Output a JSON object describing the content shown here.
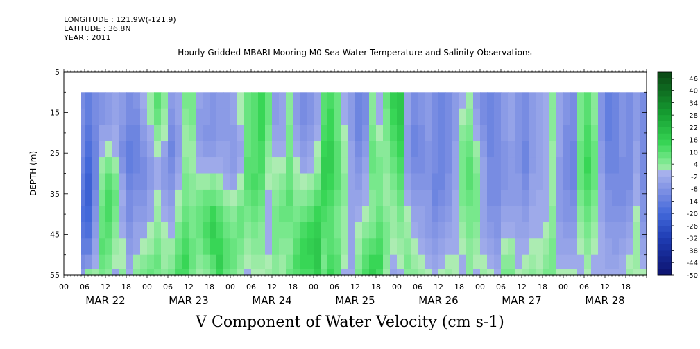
{
  "header": {
    "longitude": "LONGITUDE : 121.9W(-121.9)",
    "latitude": "LATITUDE : 36.8N",
    "year": "YEAR : 2011"
  },
  "title": "Hourly Gridded MBARI Mooring M0 Sea Water Temperature and Salinity Observations",
  "footer_title": "V Component of Water Velocity (cm s-1)",
  "chart_data": {
    "type": "heatmap",
    "title": "Hourly Gridded MBARI Mooring M0 Sea Water Temperature and Salinity Observations",
    "variable": "V Component of Water Velocity (cm s-1)",
    "xlabel": "",
    "ylabel": "DEPTH (m)",
    "ylim": [
      55,
      5
    ],
    "y_ticks": [
      5,
      15,
      25,
      35,
      45,
      55
    ],
    "x_hour_labels": [
      "00",
      "06",
      "12",
      "18",
      "00",
      "06",
      "12",
      "18",
      "00",
      "06",
      "12",
      "18",
      "00",
      "06",
      "12",
      "18",
      "00",
      "06",
      "12",
      "18",
      "00",
      "06",
      "12",
      "18",
      "00",
      "06",
      "12",
      "18"
    ],
    "x_day_labels": [
      "MAR 22",
      "MAR 23",
      "MAR 24",
      "MAR 25",
      "MAR 26",
      "MAR 27",
      "MAR 28"
    ],
    "xlim_hours": [
      0,
      168
    ],
    "data_start_hour": 5,
    "data_end_hour": 168,
    "data_depth_range": [
      10,
      55
    ],
    "colorbar_labels": [
      "46",
      "40",
      "34",
      "28",
      "22",
      "16",
      "10",
      "4",
      "-2",
      "-8",
      "-14",
      "-20",
      "-26",
      "-32",
      "-38",
      "-44",
      "-50"
    ],
    "colorbar_range": [
      -50,
      49
    ],
    "colors": {
      "strong_negative": "#0b1a70",
      "negative": "#3d63d8",
      "near_zero_negative": "#9aa6ea",
      "near_zero_positive": "#a8ecb0",
      "positive": "#2cd84c",
      "strong_positive": "#0a4a14"
    },
    "column_hours": [
      5,
      7,
      9,
      11,
      13,
      15,
      17,
      19,
      21,
      23,
      25,
      27,
      29,
      31,
      33,
      35,
      37,
      39,
      41,
      43,
      45,
      47,
      49,
      51,
      53,
      55,
      57,
      59,
      61,
      63,
      65,
      67,
      69,
      71,
      73,
      75,
      77,
      79,
      81,
      83,
      85,
      87,
      89,
      91,
      93,
      95,
      97,
      99,
      101,
      103,
      105,
      107,
      109,
      111,
      113,
      115,
      117,
      119,
      121,
      123,
      125,
      127,
      129,
      131,
      133,
      135,
      137,
      139,
      141,
      143,
      145,
      147,
      149,
      151,
      153,
      155,
      157,
      159,
      161,
      163,
      165,
      167
    ],
    "depth_levels": [
      12,
      16,
      20,
      24,
      28,
      32,
      36,
      40,
      44,
      48,
      52,
      55
    ],
    "values_cm_s": [
      [
        -10,
        -9,
        -10,
        -10,
        -12,
        -14,
        -16,
        -18,
        -16,
        -14,
        -10,
        -6
      ],
      [
        -14,
        -14,
        -16,
        -18,
        -20,
        -22,
        -22,
        -20,
        -18,
        -14,
        -8,
        4
      ],
      [
        -10,
        -10,
        -11,
        -12,
        -12,
        -12,
        -10,
        -8,
        -6,
        -4,
        -2,
        2
      ],
      [
        -8,
        -8,
        -4,
        -2,
        2,
        4,
        6,
        8,
        8,
        10,
        8,
        6
      ],
      [
        -6,
        -6,
        -4,
        0,
        6,
        10,
        12,
        12,
        10,
        8,
        6,
        4
      ],
      [
        -4,
        -4,
        -2,
        -2,
        2,
        6,
        8,
        6,
        4,
        2,
        0,
        -4
      ],
      [
        -6,
        -6,
        -8,
        -10,
        -8,
        -4,
        -2,
        -4,
        -2,
        0,
        0,
        4
      ],
      [
        -10,
        -10,
        -12,
        -14,
        -14,
        -12,
        -10,
        -10,
        -8,
        -6,
        -4,
        -2
      ],
      [
        -8,
        -10,
        -12,
        -12,
        -12,
        -10,
        -8,
        -6,
        -4,
        -4,
        2,
        4
      ],
      [
        -2,
        -4,
        -6,
        -8,
        -10,
        -10,
        -8,
        -6,
        -4,
        0,
        4,
        6
      ],
      [
        2,
        2,
        -2,
        -4,
        -6,
        -6,
        -4,
        -4,
        0,
        2,
        6,
        8
      ],
      [
        10,
        8,
        4,
        0,
        -2,
        -2,
        0,
        2,
        4,
        6,
        8,
        6
      ],
      [
        4,
        2,
        0,
        -4,
        -6,
        -6,
        -4,
        -2,
        0,
        2,
        2,
        4
      ],
      [
        -6,
        -8,
        -10,
        -12,
        -10,
        -8,
        -6,
        -4,
        -2,
        2,
        4,
        6
      ],
      [
        -4,
        -4,
        -6,
        -6,
        -4,
        -2,
        0,
        2,
        6,
        8,
        10,
        12
      ],
      [
        6,
        4,
        2,
        2,
        4,
        6,
        6,
        8,
        10,
        12,
        14,
        12
      ],
      [
        6,
        6,
        4,
        2,
        2,
        4,
        4,
        6,
        6,
        8,
        8,
        6
      ],
      [
        -4,
        -6,
        -6,
        -4,
        -2,
        2,
        6,
        8,
        8,
        6,
        4,
        2
      ],
      [
        -6,
        -6,
        -8,
        -6,
        -2,
        2,
        8,
        10,
        12,
        10,
        6,
        4
      ],
      [
        -8,
        -8,
        -8,
        -6,
        -2,
        4,
        8,
        14,
        16,
        14,
        10,
        8
      ],
      [
        -6,
        -6,
        -6,
        -4,
        -2,
        2,
        6,
        10,
        12,
        14,
        16,
        14
      ],
      [
        -6,
        -6,
        -6,
        -4,
        -4,
        -2,
        2,
        6,
        8,
        10,
        10,
        8
      ],
      [
        -4,
        -4,
        -6,
        -6,
        -6,
        -4,
        0,
        4,
        6,
        8,
        8,
        6
      ],
      [
        0,
        0,
        -2,
        -4,
        -2,
        0,
        4,
        8,
        8,
        6,
        4,
        2
      ],
      [
        8,
        8,
        8,
        8,
        10,
        10,
        8,
        6,
        4,
        2,
        0,
        -2
      ],
      [
        10,
        10,
        10,
        10,
        10,
        12,
        10,
        8,
        6,
        4,
        2,
        0
      ],
      [
        14,
        14,
        14,
        12,
        12,
        10,
        8,
        6,
        4,
        4,
        2,
        0
      ],
      [
        8,
        8,
        6,
        4,
        2,
        0,
        -2,
        -2,
        -2,
        -2,
        0,
        2
      ],
      [
        -6,
        -6,
        -4,
        -2,
        0,
        2,
        4,
        6,
        6,
        6,
        4,
        4
      ],
      [
        -4,
        -4,
        -4,
        -2,
        0,
        4,
        6,
        8,
        6,
        4,
        2,
        2
      ],
      [
        4,
        4,
        6,
        6,
        8,
        8,
        10,
        8,
        6,
        4,
        6,
        8
      ],
      [
        -6,
        -6,
        -4,
        -2,
        0,
        2,
        4,
        6,
        8,
        10,
        12,
        10
      ],
      [
        -10,
        -10,
        -8,
        -6,
        -4,
        0,
        4,
        8,
        12,
        14,
        14,
        12
      ],
      [
        -8,
        -8,
        -6,
        -4,
        -2,
        2,
        6,
        10,
        14,
        16,
        14,
        12
      ],
      [
        -4,
        -4,
        -2,
        0,
        2,
        6,
        10,
        14,
        16,
        18,
        18,
        16
      ],
      [
        10,
        10,
        12,
        14,
        16,
        16,
        14,
        12,
        10,
        8,
        6,
        8
      ],
      [
        12,
        14,
        14,
        16,
        16,
        14,
        12,
        10,
        10,
        10,
        12,
        14
      ],
      [
        8,
        8,
        8,
        10,
        10,
        10,
        8,
        6,
        6,
        8,
        10,
        10
      ],
      [
        -2,
        -2,
        0,
        2,
        2,
        4,
        4,
        2,
        2,
        2,
        0,
        -2
      ],
      [
        -6,
        -6,
        -6,
        -4,
        -4,
        -4,
        -4,
        -4,
        -4,
        -4,
        -4,
        -2
      ],
      [
        -12,
        -12,
        -12,
        -10,
        -8,
        -6,
        -4,
        -2,
        0,
        2,
        4,
        6
      ],
      [
        -10,
        -10,
        -8,
        -6,
        -4,
        -2,
        -2,
        0,
        4,
        8,
        10,
        12
      ],
      [
        4,
        4,
        6,
        8,
        8,
        6,
        4,
        4,
        6,
        10,
        14,
        16
      ],
      [
        -2,
        -2,
        0,
        4,
        6,
        6,
        6,
        8,
        10,
        12,
        14,
        12
      ],
      [
        8,
        6,
        6,
        4,
        4,
        2,
        2,
        4,
        6,
        6,
        4,
        2
      ],
      [
        16,
        14,
        12,
        10,
        8,
        6,
        4,
        2,
        2,
        0,
        -2,
        -4
      ],
      [
        18,
        18,
        16,
        14,
        12,
        10,
        8,
        6,
        4,
        2,
        0,
        -2
      ],
      [
        -4,
        -4,
        -6,
        -6,
        -6,
        -4,
        -2,
        0,
        2,
        4,
        6,
        4
      ],
      [
        -10,
        -10,
        -12,
        -12,
        -10,
        -8,
        -6,
        -4,
        -2,
        0,
        2,
        4
      ],
      [
        -8,
        -8,
        -10,
        -10,
        -10,
        -8,
        -6,
        -4,
        -4,
        -2,
        0,
        2
      ],
      [
        -6,
        -6,
        -6,
        -8,
        -8,
        -8,
        -6,
        -6,
        -6,
        -4,
        -2,
        0
      ],
      [
        -10,
        -10,
        -10,
        -10,
        -10,
        -12,
        -12,
        -10,
        -8,
        -6,
        -4,
        -2
      ],
      [
        -12,
        -12,
        -12,
        -12,
        -12,
        -12,
        -10,
        -8,
        -6,
        -4,
        -2,
        0
      ],
      [
        -10,
        -10,
        -10,
        -10,
        -10,
        -8,
        -8,
        -6,
        -4,
        -2,
        0,
        2
      ],
      [
        -6,
        -6,
        -6,
        -4,
        -4,
        -4,
        -2,
        -2,
        -2,
        -2,
        0,
        0
      ],
      [
        -2,
        0,
        4,
        6,
        6,
        6,
        6,
        4,
        2,
        0,
        -2,
        -2
      ],
      [
        2,
        4,
        6,
        8,
        10,
        10,
        8,
        6,
        6,
        4,
        4,
        4
      ],
      [
        -6,
        -4,
        -2,
        2,
        4,
        6,
        6,
        6,
        4,
        2,
        0,
        -2
      ],
      [
        -10,
        -10,
        -8,
        -6,
        -4,
        -4,
        -4,
        -4,
        -4,
        -2,
        0,
        2
      ],
      [
        -12,
        -12,
        -12,
        -12,
        -10,
        -10,
        -10,
        -8,
        -6,
        -4,
        -2,
        0
      ],
      [
        -10,
        -10,
        -10,
        -10,
        -10,
        -10,
        -10,
        -8,
        -8,
        -6,
        -4,
        -2
      ],
      [
        -6,
        -6,
        -6,
        -8,
        -8,
        -8,
        -6,
        -4,
        -2,
        0,
        4,
        6
      ],
      [
        -4,
        -4,
        -4,
        -6,
        -6,
        -6,
        -6,
        -4,
        -2,
        2,
        4,
        6
      ],
      [
        -8,
        -8,
        -8,
        -8,
        -8,
        -6,
        -6,
        -4,
        -4,
        -2,
        -2,
        0
      ],
      [
        -10,
        -10,
        -10,
        -12,
        -12,
        -10,
        -8,
        -6,
        -4,
        -2,
        0,
        2
      ],
      [
        -6,
        -6,
        -6,
        -6,
        -6,
        -4,
        -4,
        -2,
        -2,
        0,
        2,
        4
      ],
      [
        -4,
        -4,
        -4,
        -4,
        -4,
        -4,
        -2,
        -2,
        -2,
        0,
        0,
        2
      ],
      [
        -2,
        -2,
        -2,
        -2,
        -2,
        -2,
        -2,
        -2,
        0,
        2,
        4,
        6
      ],
      [
        4,
        4,
        4,
        2,
        2,
        2,
        2,
        4,
        4,
        6,
        6,
        6
      ],
      [
        -4,
        -4,
        -4,
        -4,
        -6,
        -6,
        -6,
        -6,
        -4,
        -4,
        -2,
        0
      ],
      [
        -8,
        -8,
        -10,
        -10,
        -10,
        -10,
        -8,
        -8,
        -6,
        -4,
        -2,
        0
      ],
      [
        -10,
        -10,
        -10,
        -12,
        -12,
        -12,
        -10,
        -8,
        -6,
        -4,
        -2,
        0
      ],
      [
        6,
        6,
        6,
        8,
        8,
        8,
        6,
        4,
        2,
        0,
        -2,
        -2
      ],
      [
        10,
        10,
        12,
        12,
        14,
        12,
        10,
        8,
        6,
        4,
        2,
        0
      ],
      [
        4,
        4,
        6,
        8,
        8,
        8,
        6,
        4,
        2,
        0,
        -2,
        -2
      ],
      [
        -8,
        -8,
        -8,
        -6,
        -6,
        -4,
        -4,
        -4,
        -2,
        -2,
        -2,
        -2
      ],
      [
        -14,
        -14,
        -14,
        -12,
        -12,
        -10,
        -8,
        -8,
        -6,
        -4,
        -4,
        -2
      ],
      [
        -12,
        -12,
        -12,
        -12,
        -12,
        -10,
        -10,
        -8,
        -6,
        -6,
        -4,
        -2
      ],
      [
        -8,
        -8,
        -8,
        -8,
        -10,
        -10,
        -10,
        -8,
        -6,
        -4,
        -2,
        -2
      ],
      [
        -10,
        -10,
        -10,
        -10,
        -10,
        -10,
        -8,
        -6,
        -4,
        -2,
        0,
        2
      ],
      [
        -6,
        -6,
        -6,
        -4,
        -4,
        -2,
        -2,
        0,
        2,
        2,
        2,
        0
      ],
      [
        -10,
        -10,
        -10,
        -10,
        -10,
        -10,
        -8,
        -8,
        -6,
        -4,
        -2,
        0
      ]
    ]
  }
}
